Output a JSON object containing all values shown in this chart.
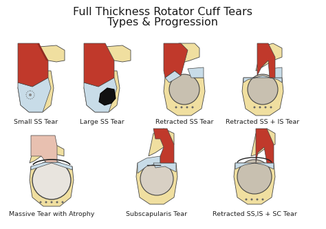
{
  "title_line1": "Full Thickness Rotator Cuff Tears",
  "title_line2": "Types & Progression",
  "title_fontsize": 11.5,
  "title_color": "#1a1a1a",
  "background_color": "#ffffff",
  "labels": [
    "Small SS Tear",
    "Large SS Tear",
    "Retracted SS Tear",
    "Retracted SS + IS Tear",
    "Massive Tear with Atrophy",
    "Subscapularis Tear",
    "Retracted SS,IS + SC Tear"
  ],
  "label_fontsize": 6.8,
  "label_color": "#222222",
  "colors": {
    "muscle_red": "#c0392b",
    "muscle_red2": "#922b21",
    "bone_cream": "#f0dfa0",
    "bone_cream2": "#e8d898",
    "tendon_blue": "#c8dce8",
    "tendon_blue2": "#b8ccd8",
    "outline": "#444444",
    "background": "#ffffff",
    "head_gray": "#c8c0b0",
    "head_white": "#e8e4de",
    "atrophy_pink": "#e8c0b0",
    "black_tear": "#111111"
  }
}
